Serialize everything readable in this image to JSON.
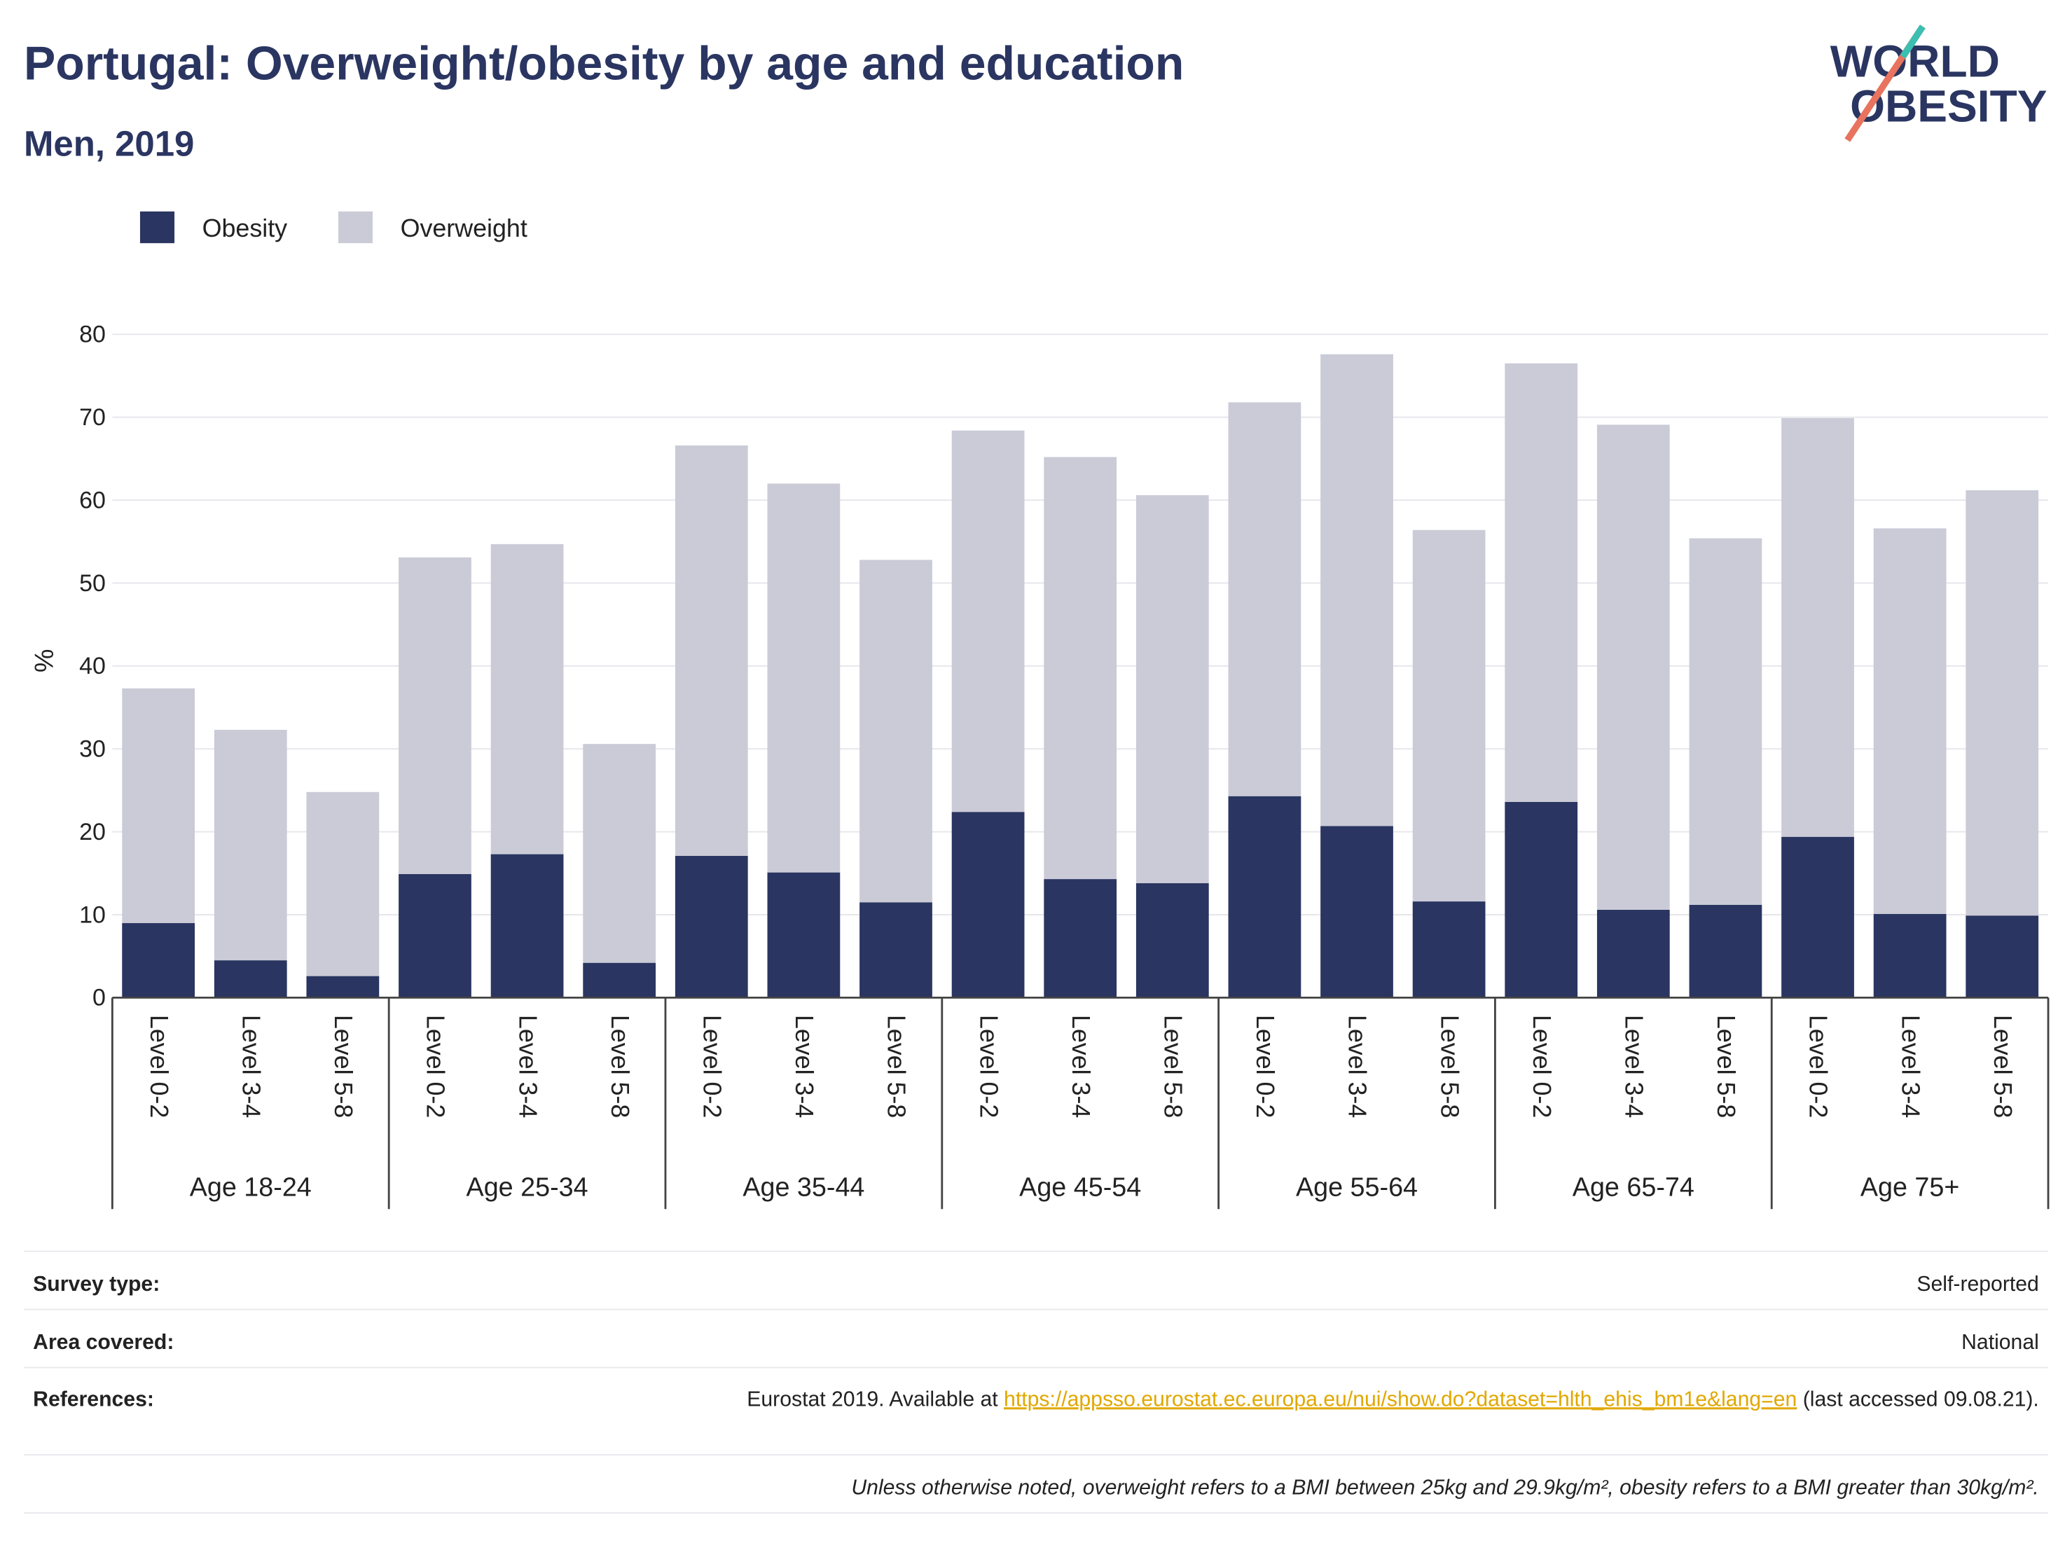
{
  "chart_data": {
    "type": "stacked_bar",
    "title": "Portugal: Overweight/obesity by age and education",
    "subtitle": "Men, 2019",
    "logo": [
      "WORLD",
      "OBESITY"
    ],
    "y_label": "%",
    "categories": [
      "Level 0-2",
      "Level 3-4",
      "Level 5-8",
      "Level 0-2",
      "Level 3-4",
      "Level 5-8",
      "Level 0-2",
      "Level 3-4",
      "Level 5-8",
      "Level 0-2",
      "Level 3-4",
      "Level 5-8",
      "Level 0-2",
      "Level 3-4",
      "Level 5-8",
      "Level 0-2",
      "Level 3-4",
      "Level 5-8",
      "Level 0-2",
      "Level 3-4",
      "Level 5-8"
    ],
    "groups": [
      "Age 18-24",
      "Age 25-34",
      "Age 35-44",
      "Age 45-54",
      "Age 55-64",
      "Age 65-74",
      "Age 75+"
    ],
    "series": [
      {
        "name": "Obesity",
        "color": "#2a3561",
        "values": [
          9.0,
          4.5,
          2.6,
          14.9,
          17.3,
          4.2,
          17.1,
          15.1,
          11.5,
          22.4,
          14.3,
          13.8,
          24.3,
          20.7,
          11.6,
          23.6,
          10.6,
          11.2,
          19.4,
          10.1,
          9.9
        ]
      },
      {
        "name": "Overweight",
        "color": "#cacbd7",
        "values": [
          28.3,
          27.8,
          22.2,
          38.2,
          37.4,
          26.4,
          49.5,
          46.9,
          41.3,
          46.0,
          50.9,
          46.8,
          47.5,
          56.9,
          44.8,
          52.9,
          58.5,
          44.2,
          50.5,
          46.5,
          51.3
        ]
      }
    ],
    "ylim": [
      0,
      80
    ],
    "yticks": [
      0,
      10,
      20,
      30,
      40,
      50,
      60,
      70,
      80
    ],
    "grid": true,
    "legend": "top-left",
    "footer": {
      "survey_label": "Survey type:",
      "survey_value": "Self-reported",
      "area_label": "Area covered:",
      "area_value": "National",
      "ref_label": "References:",
      "ref_before": "Eurostat 2019. Available at ",
      "ref_link": "https://appsso.eurostat.ec.europa.eu/nui/show.do?dataset=hlth_ehis_bm1e&lang=en",
      "ref_after": " (last accessed 09.08.21).",
      "note": "Unless otherwise noted, overweight refers to a BMI between 25kg and 29.9kg/m², obesity refers to a BMI greater than 30kg/m²."
    }
  }
}
